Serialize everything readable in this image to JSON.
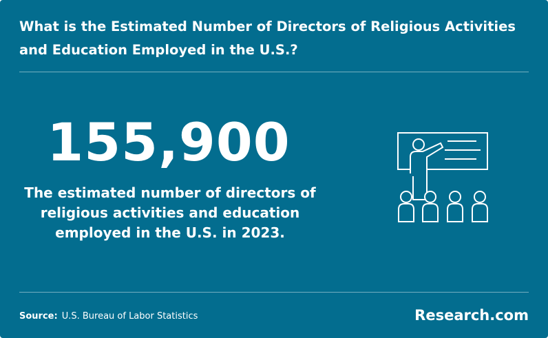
{
  "header": {
    "title": "What is the Estimated Number of Directors of Religious Activities and Education Employed in the U.S.?"
  },
  "stat": {
    "value": "155,900",
    "description_lines": [
      "The estimated number of directors of",
      "religious activities and education",
      "employed in the U.S. in 2023."
    ]
  },
  "footer": {
    "source_label": "Source:",
    "source": "U.S. Bureau of Labor Statistics",
    "brand": "Research.com"
  }
}
